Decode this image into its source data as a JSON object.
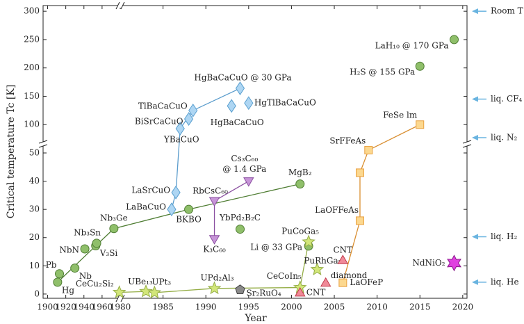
{
  "chart_data": {
    "type": "scatter",
    "xlabel": "Year",
    "ylabel": "Critical temperature Tc [K]",
    "xlim": [
      1895,
      2020.5
    ],
    "xbreak": 1980,
    "xticks": [
      1900,
      1920,
      1940,
      1960,
      1980,
      1985,
      1990,
      1995,
      2000,
      2005,
      2010,
      2015,
      2020
    ],
    "ylim": [
      -1.5,
      310
    ],
    "ybreak": 50,
    "yticks": [
      0,
      10,
      20,
      30,
      40,
      50,
      100,
      150,
      200,
      250,
      300
    ],
    "grid": false,
    "series": [
      {
        "marker": "circle",
        "color": "#8fbf6a",
        "edge": "#4f7d33",
        "line_color": "#4f7d33",
        "x": [
          1911,
          1913,
          1930,
          1941,
          1953,
          1954,
          1973,
          1988,
          1994,
          2001,
          2002,
          2015,
          2019
        ],
        "values": [
          4.2,
          7.2,
          9.2,
          16,
          17.1,
          18,
          23.2,
          30,
          23,
          39,
          17,
          203,
          250
        ],
        "labels": [
          "Hg",
          "Pb",
          "Nb",
          "NbN",
          "V₃Si",
          "Nb₃Sn",
          "Nb₃Ge",
          "BKBO",
          "YbPd₂B₂C",
          "MgB₂",
          "Li @ 33 GPa",
          "H₂S @ 155 GPa",
          "LaH₁₀ @  170 GPa"
        ]
      },
      {
        "marker": "star",
        "color": "#d2e67a",
        "edge": "#94ad45",
        "line_color": "#94ad45",
        "x": [
          1979,
          1983,
          1984,
          1991,
          2001,
          2002,
          2003
        ],
        "values": [
          0.6,
          0.9,
          0.5,
          2,
          2.3,
          18.5,
          8.7
        ],
        "labels": [
          "CeCu₂Si₂",
          "UBe₁₃",
          "UPt₃",
          "UPd₂Al₃",
          "CeCoIn₅",
          "PuCoGa₅",
          "PuRhGa₅"
        ]
      },
      {
        "marker": "diamond",
        "color": "#aed6f3",
        "edge": "#5aa0d0",
        "line_color": "#5a9ccc",
        "x": [
          1986,
          1986.5,
          1987,
          1988,
          1988.5,
          1993,
          1994,
          1995
        ],
        "values": [
          30,
          36,
          93,
          110,
          125,
          133,
          164,
          138
        ],
        "labels": [
          "LaBaCuO",
          "LaSrCuO",
          "YBaCuO",
          "BiSrCaCuO",
          "TlBaCaCuO",
          "HgBaCaCuO",
          "HgBaCaCuO @ 30 GPa",
          "HgTlBaCaCuO"
        ]
      },
      {
        "marker": "square",
        "color": "#fcd88f",
        "edge": "#e8a040",
        "line_color": "#d98e30",
        "x": [
          2006,
          2008,
          2008,
          2009,
          2015
        ],
        "values": [
          4,
          26,
          43,
          55,
          100
        ],
        "labels": [
          "LaOFeP",
          "LaOFFeAs",
          null,
          "SrFFeAs",
          "FeSe   lm"
        ]
      },
      {
        "marker": "tridown",
        "color": "#c795d8",
        "edge": "#8a4fa0",
        "line_color": "#8a4fa0",
        "x": [
          1991,
          1991,
          1995
        ],
        "values": [
          19.5,
          33,
          40
        ],
        "labels": [
          "K₃C₆₀",
          "RbCsC₆₀",
          [
            "Cs₃C₆₀",
            "@ 1.4 GPa"
          ]
        ]
      },
      {
        "marker": "triup",
        "color": "#f08a98",
        "edge": "#c03a4c",
        "x": [
          2001,
          2004,
          2006
        ],
        "values": [
          0.5,
          4,
          12
        ],
        "labels": [
          "CNT",
          "diamond",
          "CNT"
        ]
      },
      {
        "marker": "pentagon",
        "color": "#8a8a8a",
        "edge": "#444444",
        "x": [
          1994
        ],
        "values": [
          1.5
        ],
        "labels": [
          "Sr₂RuO₄"
        ]
      },
      {
        "marker": "star6",
        "color": "#e040e0",
        "edge": "#8a1a8a",
        "x": [
          2019
        ],
        "values": [
          11
        ],
        "labels": [
          "NdNiO₂"
        ]
      }
    ],
    "ref_lines": [
      {
        "label": "Room T",
        "value": 300
      },
      {
        "label": "liq. CF₄",
        "value": 145
      },
      {
        "label": "liq. N₂",
        "value": 77
      },
      {
        "label": "liq. H₂",
        "value": 20.3
      },
      {
        "label": "liq. He",
        "value": 4.2
      }
    ],
    "ref_color": "#6ab4e0"
  }
}
